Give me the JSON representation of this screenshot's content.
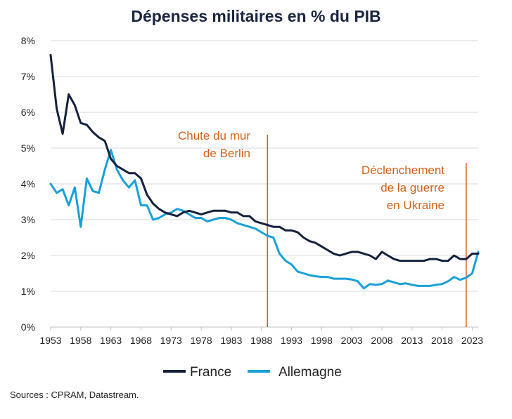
{
  "chart_data": {
    "type": "line",
    "title": "Dépenses militaires en % du PIB",
    "xlabel": "",
    "ylabel": "",
    "ylim": [
      0,
      8
    ],
    "xlim": [
      1953,
      2024
    ],
    "y_ticks": [
      "0%",
      "1%",
      "2%",
      "3%",
      "4%",
      "5%",
      "6%",
      "7%",
      "8%"
    ],
    "x_ticks": [
      1953,
      1958,
      1963,
      1968,
      1973,
      1978,
      1983,
      1988,
      1993,
      1998,
      2003,
      2008,
      2013,
      2018,
      2023
    ],
    "grid": "horizontal",
    "legend_position": "bottom",
    "annotations": [
      {
        "year": 1989,
        "lines": [
          "Chute du mur",
          "de Berlin"
        ]
      },
      {
        "year": 2022,
        "lines": [
          "Déclenchement",
          "de la guerre",
          "en Ukraine"
        ]
      }
    ],
    "series": [
      {
        "name": "France",
        "color": "#14213d",
        "x": [
          1953,
          1954,
          1955,
          1956,
          1957,
          1958,
          1959,
          1960,
          1961,
          1962,
          1963,
          1964,
          1965,
          1966,
          1967,
          1968,
          1969,
          1970,
          1971,
          1972,
          1973,
          1974,
          1975,
          1976,
          1977,
          1978,
          1979,
          1980,
          1981,
          1982,
          1983,
          1984,
          1985,
          1986,
          1987,
          1988,
          1989,
          1990,
          1991,
          1992,
          1993,
          1994,
          1995,
          1996,
          1997,
          1998,
          1999,
          2000,
          2001,
          2002,
          2003,
          2004,
          2005,
          2006,
          2007,
          2008,
          2009,
          2010,
          2011,
          2012,
          2013,
          2014,
          2015,
          2016,
          2017,
          2018,
          2019,
          2020,
          2021,
          2022,
          2023,
          2024
        ],
        "values": [
          7.6,
          6.1,
          5.4,
          6.5,
          6.2,
          5.7,
          5.65,
          5.45,
          5.3,
          5.2,
          4.7,
          4.5,
          4.4,
          4.3,
          4.3,
          4.15,
          3.7,
          3.45,
          3.3,
          3.2,
          3.15,
          3.1,
          3.2,
          3.25,
          3.2,
          3.15,
          3.2,
          3.25,
          3.25,
          3.25,
          3.2,
          3.2,
          3.1,
          3.1,
          2.95,
          2.9,
          2.85,
          2.8,
          2.8,
          2.7,
          2.7,
          2.65,
          2.5,
          2.4,
          2.35,
          2.25,
          2.15,
          2.05,
          2.0,
          2.05,
          2.1,
          2.1,
          2.05,
          2.0,
          1.9,
          2.1,
          2.0,
          1.9,
          1.85,
          1.85,
          1.85,
          1.85,
          1.85,
          1.9,
          1.9,
          1.85,
          1.85,
          2.0,
          1.9,
          1.9,
          2.05,
          2.05
        ]
      },
      {
        "name": "Allemagne",
        "color": "#1aa0d8",
        "x": [
          1953,
          1954,
          1955,
          1956,
          1957,
          1958,
          1959,
          1960,
          1961,
          1962,
          1963,
          1964,
          1965,
          1966,
          1967,
          1968,
          1969,
          1970,
          1971,
          1972,
          1973,
          1974,
          1975,
          1976,
          1977,
          1978,
          1979,
          1980,
          1981,
          1982,
          1983,
          1984,
          1985,
          1986,
          1987,
          1988,
          1989,
          1990,
          1991,
          1992,
          1993,
          1994,
          1995,
          1996,
          1997,
          1998,
          1999,
          2000,
          2001,
          2002,
          2003,
          2004,
          2005,
          2006,
          2007,
          2008,
          2009,
          2010,
          2011,
          2012,
          2013,
          2014,
          2015,
          2016,
          2017,
          2018,
          2019,
          2020,
          2021,
          2022,
          2023,
          2024
        ],
        "values": [
          4.0,
          3.75,
          3.85,
          3.4,
          3.9,
          2.8,
          4.15,
          3.8,
          3.75,
          4.4,
          4.95,
          4.4,
          4.1,
          3.9,
          4.1,
          3.4,
          3.4,
          3.0,
          3.05,
          3.15,
          3.2,
          3.3,
          3.25,
          3.15,
          3.05,
          3.05,
          2.95,
          3.0,
          3.05,
          3.05,
          3.0,
          2.9,
          2.85,
          2.8,
          2.75,
          2.65,
          2.55,
          2.5,
          2.05,
          1.85,
          1.75,
          1.55,
          1.5,
          1.45,
          1.42,
          1.4,
          1.4,
          1.35,
          1.35,
          1.35,
          1.33,
          1.28,
          1.08,
          1.2,
          1.18,
          1.2,
          1.3,
          1.25,
          1.2,
          1.22,
          1.18,
          1.15,
          1.15,
          1.15,
          1.18,
          1.2,
          1.28,
          1.4,
          1.32,
          1.38,
          1.5,
          2.1
        ]
      }
    ]
  },
  "source": "Sources : CPRAM, Datastream."
}
